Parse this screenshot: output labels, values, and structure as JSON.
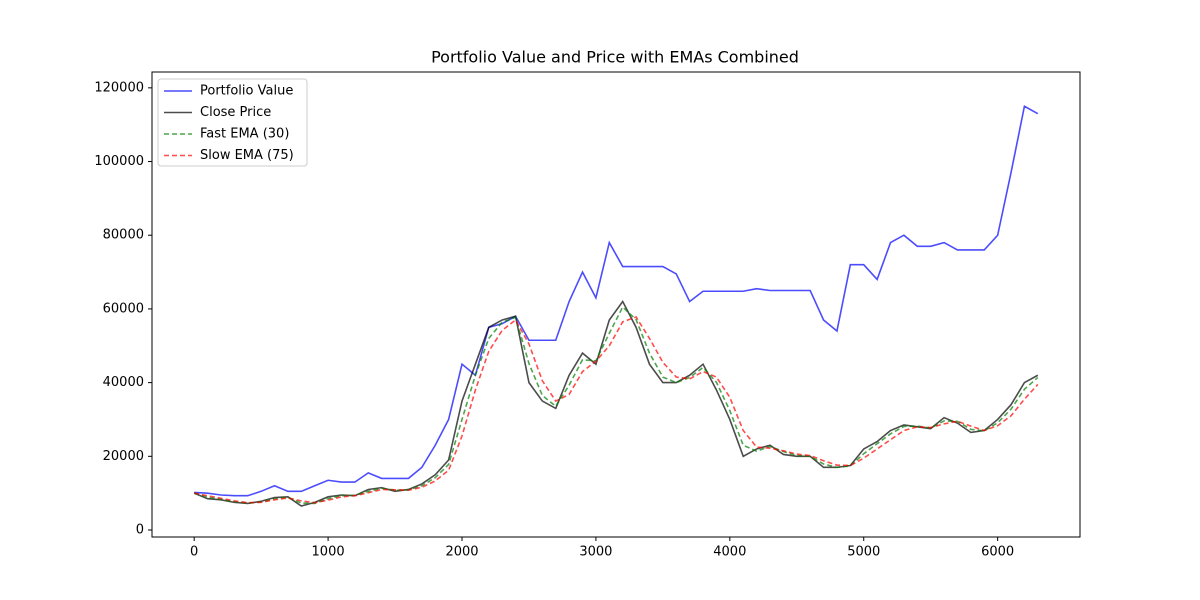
{
  "chart_data": {
    "type": "line",
    "title": "Portfolio Value and Price with EMAs Combined",
    "x": [
      0,
      100,
      200,
      300,
      400,
      500,
      600,
      700,
      800,
      900,
      1000,
      1100,
      1200,
      1300,
      1400,
      1500,
      1600,
      1700,
      1800,
      1900,
      2000,
      2100,
      2200,
      2300,
      2400,
      2500,
      2600,
      2700,
      2800,
      2900,
      3000,
      3100,
      3200,
      3300,
      3400,
      3500,
      3600,
      3700,
      3800,
      3900,
      4000,
      4100,
      4200,
      4300,
      4400,
      4500,
      4600,
      4700,
      4800,
      4900,
      5000,
      5100,
      5200,
      5300,
      5400,
      5500,
      5600,
      5700,
      5800,
      5900,
      6000,
      6100,
      6200,
      6300
    ],
    "series": [
      {
        "name": "Portfolio Value",
        "color": "#0000ff",
        "dash": false,
        "values": [
          10200,
          10000,
          9500,
          9300,
          9300,
          10500,
          12000,
          10500,
          10500,
          12000,
          13500,
          13000,
          13000,
          15500,
          14000,
          14000,
          14000,
          17000,
          23000,
          30000,
          45000,
          42000,
          55000,
          56000,
          58000,
          51500,
          51500,
          51500,
          62000,
          70000,
          63000,
          78000,
          71500,
          71500,
          71500,
          71500,
          69500,
          62000,
          64800,
          64800,
          64800,
          64800,
          65500,
          65000,
          65000,
          65000,
          65000,
          57000,
          54000,
          72000,
          72000,
          68000,
          78000,
          80000,
          77000,
          77000,
          78000,
          76000,
          76000,
          76000,
          80000,
          97000,
          115000,
          113000
        ]
      },
      {
        "name": "Close Price",
        "color": "#000000",
        "dash": false,
        "values": [
          10000,
          8500,
          8200,
          7500,
          7200,
          7800,
          8800,
          9000,
          6500,
          7500,
          9000,
          9500,
          9300,
          11000,
          11500,
          10500,
          11000,
          12500,
          15000,
          19000,
          35000,
          45000,
          55000,
          57000,
          58000,
          40000,
          35000,
          33000,
          42000,
          48000,
          45000,
          57000,
          62000,
          55000,
          45000,
          40000,
          40000,
          42000,
          45000,
          38000,
          30000,
          20000,
          22000,
          23000,
          20500,
          20000,
          20000,
          17000,
          17000,
          17500,
          22000,
          24000,
          27000,
          28500,
          28000,
          27500,
          30500,
          29000,
          26500,
          27000,
          30000,
          34000,
          40000,
          42000
        ]
      },
      {
        "name": "Fast EMA (30)",
        "color": "#008000",
        "dash": true,
        "values": [
          10000,
          8900,
          8300,
          7700,
          7300,
          7600,
          8500,
          8900,
          7300,
          7200,
          8500,
          9300,
          9400,
          10500,
          11300,
          10800,
          10900,
          12000,
          14200,
          17800,
          30000,
          42000,
          52000,
          56400,
          57700,
          45200,
          36500,
          33600,
          39300,
          46200,
          45900,
          53400,
          60500,
          57100,
          48000,
          41500,
          40000,
          41400,
          44100,
          40100,
          32400,
          23000,
          21400,
          22700,
          21300,
          20200,
          20000,
          17900,
          17000,
          17400,
          20700,
          23400,
          26100,
          28100,
          28200,
          27700,
          29600,
          29500,
          27300,
          26900,
          29100,
          32800,
          38200,
          41400
        ]
      },
      {
        "name": "Slow EMA (75)",
        "color": "#ff0000",
        "dash": true,
        "values": [
          10000,
          9300,
          8600,
          7900,
          7400,
          7500,
          8200,
          8700,
          7900,
          7400,
          8100,
          9000,
          9300,
          10100,
          11000,
          10900,
          10800,
          11600,
          13300,
          16200,
          25500,
          38000,
          48500,
          54200,
          57000,
          50500,
          40500,
          35000,
          36800,
          43000,
          45800,
          50000,
          56500,
          57800,
          52000,
          45500,
          41500,
          41000,
          43000,
          41500,
          36000,
          27000,
          22500,
          22200,
          21500,
          20600,
          20200,
          18800,
          17600,
          17500,
          19500,
          22000,
          24500,
          27000,
          28000,
          27800,
          28800,
          29500,
          28200,
          27000,
          28300,
          31000,
          35500,
          39500
        ]
      }
    ],
    "xlim": [
      -315,
      6615
    ],
    "ylim": [
      -1900,
      124300
    ],
    "xticks": [
      0,
      1000,
      2000,
      3000,
      4000,
      5000,
      6000
    ],
    "yticks": [
      0,
      20000,
      40000,
      60000,
      80000,
      100000,
      120000
    ],
    "legend": "upper-left",
    "grid": false
  }
}
